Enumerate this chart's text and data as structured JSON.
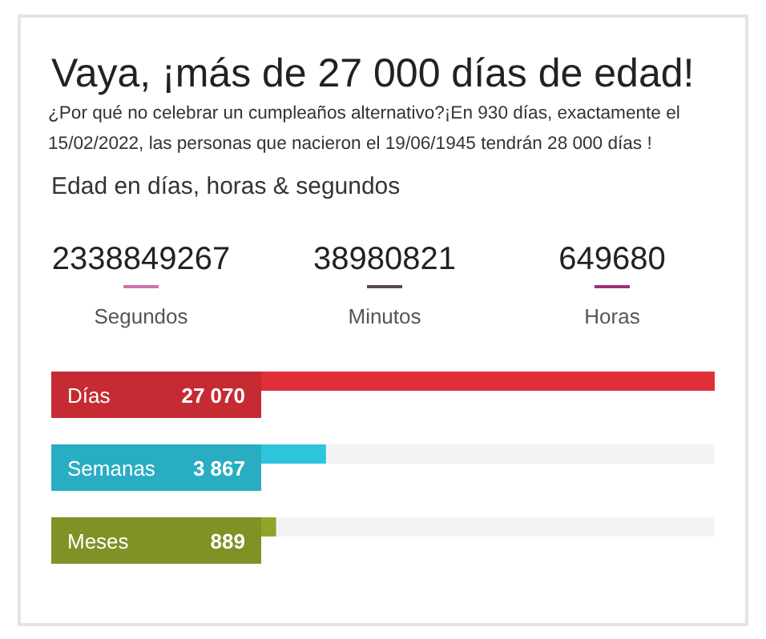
{
  "chart_data": {
    "type": "bar",
    "orientation": "horizontal",
    "title": "Vaya, ¡más de 27 000 días de edad!",
    "subtitle": "¿Por qué no celebrar un cumpleaños alternativo?¡En 930 días, exactamente el 15/02/2022, las personas que nacieron el 19/06/1945 tendrán 28 000 días !",
    "annotations": [
      "Edad en días, horas & segundos",
      "2338849267",
      "Segundos",
      "38980821",
      "Minutos",
      "649680",
      "Horas"
    ],
    "categories": [
      "Días",
      "Semanas",
      "Meses"
    ],
    "values": [
      27070,
      3867,
      889
    ],
    "value_labels": [
      "27 070",
      "3 867",
      "889"
    ],
    "colors": [
      "#e0303a",
      "#2ec4dc",
      "#8fa52a"
    ]
  }
}
